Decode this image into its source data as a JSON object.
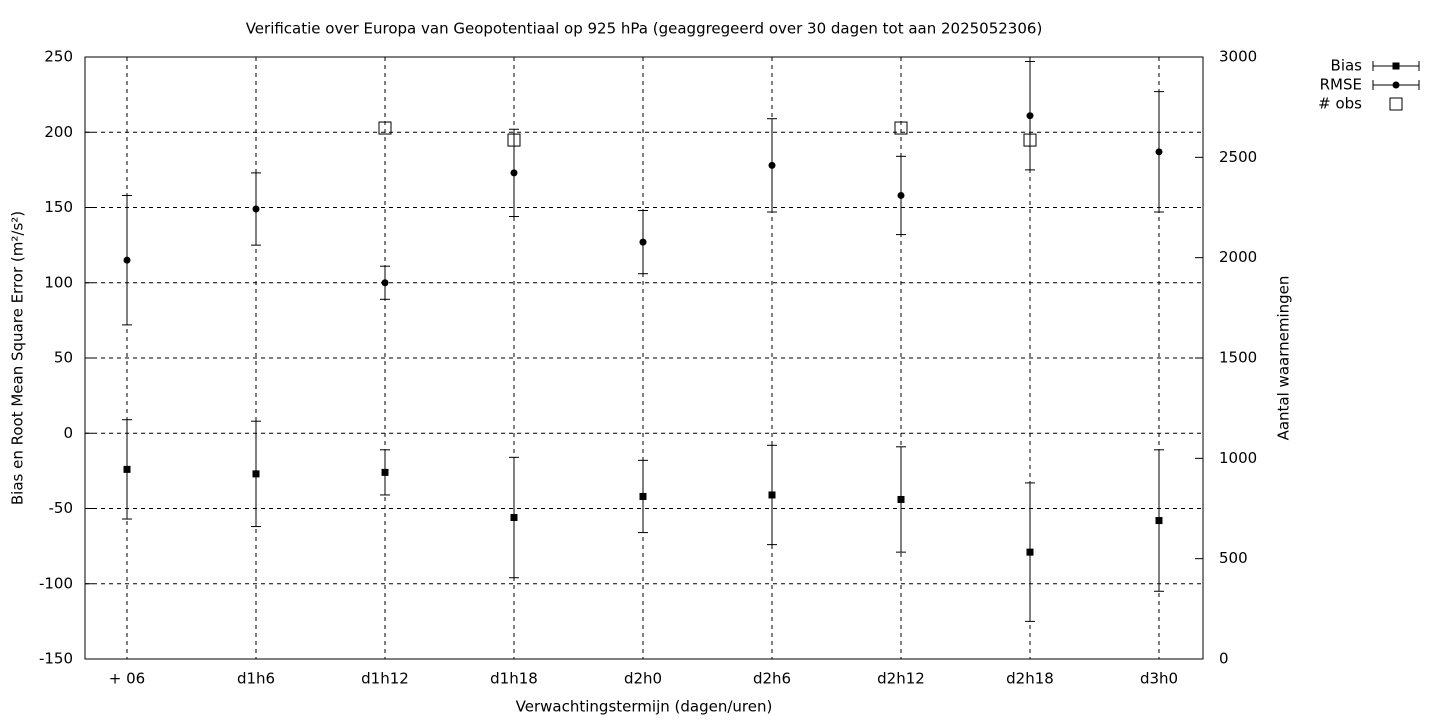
{
  "chart_data": {
    "type": "errorbar",
    "title": "Verificatie over Europa van Geopotentiaal op 925 hPa (geaggregeerd over 30 dagen tot aan 2025052306)",
    "x_label": "Verwachtingstermijn (dagen/uren)",
    "y_label": "Bias en Root Mean Square Error (m²/s²)",
    "y2_label": "Aantal waarnemingen",
    "categories": [
      "+ 06",
      "d1h6",
      "d1h12",
      "d1h18",
      "d2h0",
      "d2h6",
      "d2h12",
      "d2h18",
      "d3h0"
    ],
    "series": [
      {
        "name": "Bias",
        "color": "#000000",
        "marker": "square",
        "values": [
          -24,
          -27,
          -26,
          -56,
          -42,
          -41,
          -44,
          -79,
          -58
        ],
        "errors": [
          33,
          35,
          15,
          40,
          24,
          33,
          35,
          46,
          47
        ]
      },
      {
        "name": "RMSE",
        "color": "#000000",
        "marker": "circle",
        "values": [
          115,
          149,
          100,
          173,
          127,
          178,
          158,
          211,
          187
        ],
        "errors": [
          43,
          24,
          11,
          29,
          21,
          31,
          26,
          36,
          40
        ]
      },
      {
        "name": "# obs",
        "color": "#000000",
        "marker": "open-square",
        "axis": "y2",
        "values": [
          null,
          null,
          2646,
          2586,
          null,
          null,
          2646,
          2586,
          null
        ]
      }
    ],
    "ylim": [
      -150,
      250
    ],
    "yticks": [
      -150,
      -100,
      -50,
      0,
      50,
      100,
      150,
      200,
      250
    ],
    "y2lim": [
      0,
      3000
    ],
    "y2ticks": [
      0,
      500,
      1000,
      1500,
      2000,
      2500,
      3000
    ],
    "grid": true,
    "legend": "top-right"
  }
}
